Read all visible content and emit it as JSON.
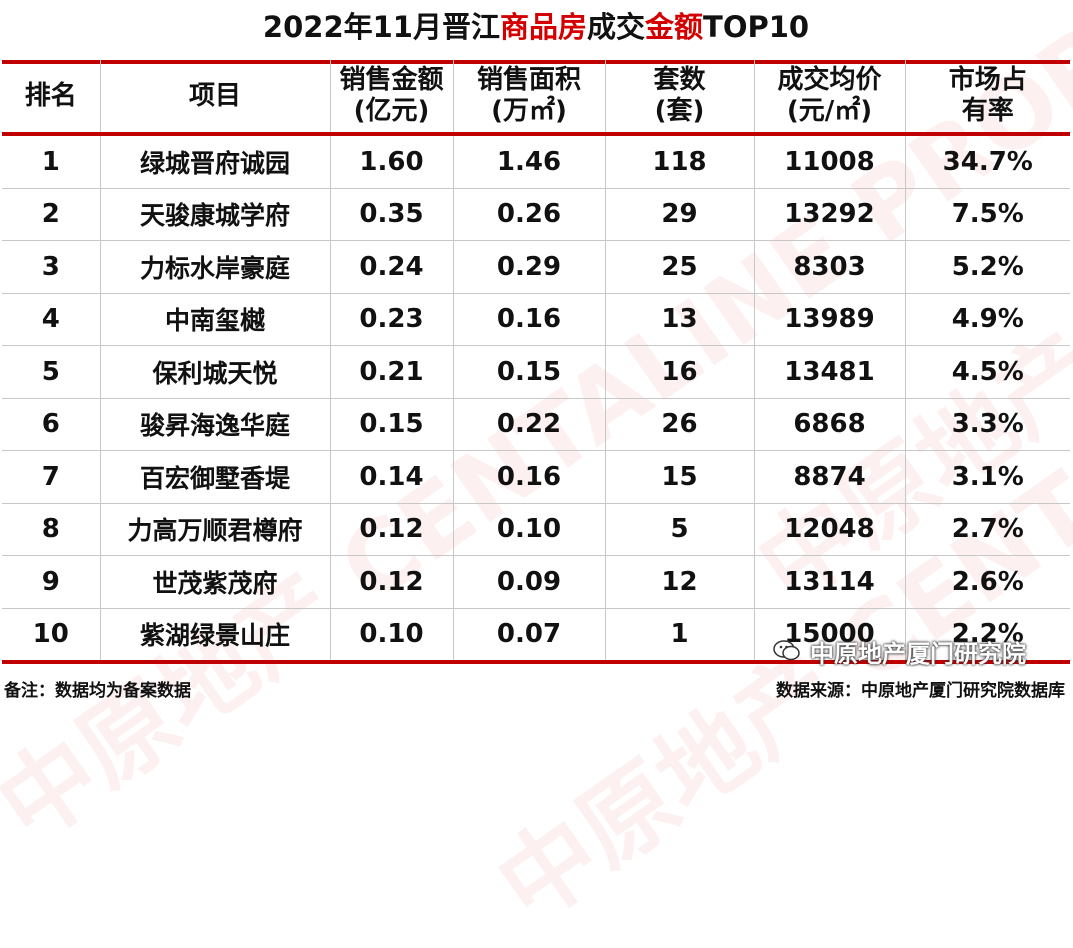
{
  "title": {
    "part1": "2022年11月晋江",
    "part2": "商品房",
    "part3": "成交",
    "part4": "金额",
    "part5": "TOP10"
  },
  "columns": {
    "rank": [
      "排名"
    ],
    "project": [
      "项目"
    ],
    "amount": [
      "销售金额",
      "(亿元)"
    ],
    "area": [
      "销售面积",
      "(万㎡)"
    ],
    "units": [
      "套数",
      "(套)"
    ],
    "price": [
      "成交均价",
      "(元/㎡)"
    ],
    "share": [
      "市场占",
      "有率"
    ]
  },
  "rows": [
    {
      "rank": "1",
      "project": "绿城晋府诚园",
      "amount": "1.60",
      "area": "1.46",
      "units": "118",
      "price": "11008",
      "share": "34.7%"
    },
    {
      "rank": "2",
      "project": "天骏康城学府",
      "amount": "0.35",
      "area": "0.26",
      "units": "29",
      "price": "13292",
      "share": "7.5%"
    },
    {
      "rank": "3",
      "project": "力标水岸豪庭",
      "amount": "0.24",
      "area": "0.29",
      "units": "25",
      "price": "8303",
      "share": "5.2%"
    },
    {
      "rank": "4",
      "project": "中南玺樾",
      "amount": "0.23",
      "area": "0.16",
      "units": "13",
      "price": "13989",
      "share": "4.9%"
    },
    {
      "rank": "5",
      "project": "保利城天悦",
      "amount": "0.21",
      "area": "0.15",
      "units": "16",
      "price": "13481",
      "share": "4.5%"
    },
    {
      "rank": "6",
      "project": "骏昇海逸华庭",
      "amount": "0.15",
      "area": "0.22",
      "units": "26",
      "price": "6868",
      "share": "3.3%"
    },
    {
      "rank": "7",
      "project": "百宏御墅香堤",
      "amount": "0.14",
      "area": "0.16",
      "units": "15",
      "price": "8874",
      "share": "3.1%"
    },
    {
      "rank": "8",
      "project": "力高万顺君樽府",
      "amount": "0.12",
      "area": "0.10",
      "units": "5",
      "price": "12048",
      "share": "2.7%"
    },
    {
      "rank": "9",
      "project": "世茂紫茂府",
      "amount": "0.12",
      "area": "0.09",
      "units": "12",
      "price": "13114",
      "share": "2.6%"
    },
    {
      "rank": "10",
      "project": "紫湖绿景山庄",
      "amount": "0.10",
      "area": "0.07",
      "units": "1",
      "price": "15000",
      "share": "2.2%"
    }
  ],
  "footer": {
    "note": "备注：数据均为备案数据",
    "source": "数据来源：中原地产厦门研究院数据库"
  },
  "wechat": {
    "label": "中原地产厦门研究院",
    "icon": "wechat-icon"
  },
  "watermark": "中原地产 CENTALINE PROPERTY",
  "colors": {
    "accent": "#d40000",
    "rule": "#c00000",
    "grid": "#c7c7c7"
  }
}
